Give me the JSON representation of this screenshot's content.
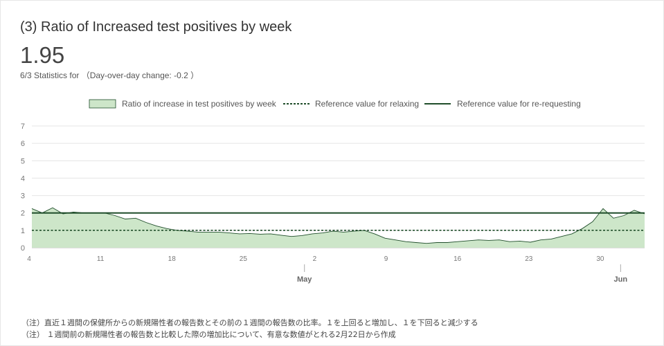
{
  "header": {
    "title": "(3) Ratio of Increased test positives by week",
    "value": "1.95",
    "subtitle": "6/3 Statistics for （Day-over-day change: -0.2 ）"
  },
  "colors": {
    "area_fill": "#cde6c9",
    "area_stroke": "#1f4d2a",
    "reference_line": "#1f4d2a",
    "grid": "#e4e4e4"
  },
  "notes": [
    "（注）直近１週間の保健所からの新規陽性者の報告数とその前の１週間の報告数の比率。１を上回ると増加し、１を下回ると減少する",
    "（注） １週間前の新規陽性者の報告数と比較した際の増加比について、有意な数値がとれる2月22日から作成"
  ],
  "chart_data": {
    "type": "area",
    "legend_position": "top",
    "grid": true,
    "ylim": [
      0,
      7
    ],
    "yticks": [
      "0",
      "1",
      "2",
      "3",
      "4",
      "5",
      "6",
      "7"
    ],
    "xlim": [
      0,
      60
    ],
    "xticks": [
      {
        "label": "4",
        "x": 0
      },
      {
        "label": "11",
        "x": 7
      },
      {
        "label": "18",
        "x": 14
      },
      {
        "label": "25",
        "x": 21
      },
      {
        "label": "2",
        "x": 28
      },
      {
        "label": "9",
        "x": 35
      },
      {
        "label": "16",
        "x": 42
      },
      {
        "label": "23",
        "x": 49
      },
      {
        "label": "30",
        "x": 56
      }
    ],
    "month_labels": [
      {
        "label": "May",
        "x": 27
      },
      {
        "label": "Jun",
        "x": 58
      }
    ],
    "series": [
      {
        "name": "Ratio of increase in test positives by week",
        "values": [
          2.25,
          2.0,
          2.3,
          1.95,
          2.05,
          2.0,
          2.0,
          2.0,
          1.85,
          1.65,
          1.7,
          1.45,
          1.25,
          1.1,
          1.0,
          0.95,
          0.9,
          0.9,
          0.9,
          0.85,
          0.8,
          0.82,
          0.78,
          0.8,
          0.72,
          0.65,
          0.7,
          0.8,
          0.85,
          0.95,
          0.9,
          0.95,
          1.0,
          0.8,
          0.55,
          0.45,
          0.35,
          0.3,
          0.25,
          0.3,
          0.3,
          0.35,
          0.4,
          0.45,
          0.42,
          0.45,
          0.35,
          0.38,
          0.32,
          0.45,
          0.5,
          0.65,
          0.8,
          1.1,
          1.5,
          2.25,
          1.7,
          1.85,
          2.15,
          1.95
        ]
      },
      {
        "name": "Reference value for relaxing",
        "value": 1
      },
      {
        "name": "Reference value for re-requesting",
        "value": 2
      }
    ]
  }
}
